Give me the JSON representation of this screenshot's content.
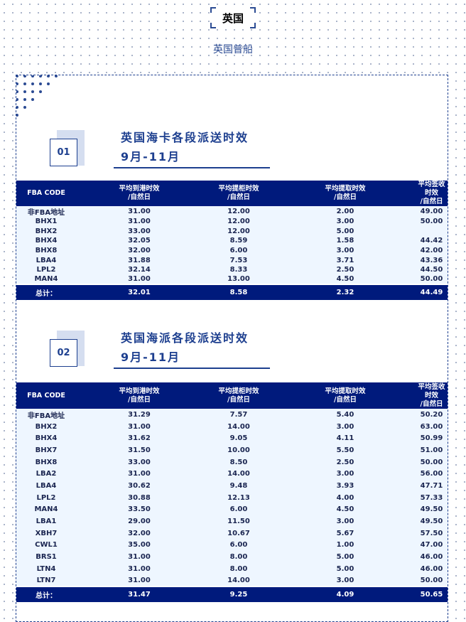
{
  "header": {
    "country": "英国",
    "subtitle": "英国普船"
  },
  "headers": [
    "FBA CODE",
    "平均到港时效\n/自然日",
    "平均提柜时效\n/自然日",
    "平均提取时效\n/自然日",
    "平均签收时效\n/自然日"
  ],
  "sections": [
    {
      "number": "01",
      "title": "英国海卡各段派送时效",
      "period": "9月-11月",
      "rows": [
        [
          "非FBA地址",
          "31.00",
          "12.00",
          "2.00",
          "49.00"
        ],
        [
          "BHX1",
          "31.00",
          "12.00",
          "3.00",
          "50.00"
        ],
        [
          "BHX2",
          "33.00",
          "12.00",
          "5.00",
          ""
        ],
        [
          "BHX4",
          "32.05",
          "8.59",
          "1.58",
          "44.42"
        ],
        [
          "BHX8",
          "32.00",
          "6.00",
          "3.00",
          "42.00"
        ],
        [
          "LBA4",
          "31.88",
          "7.53",
          "3.71",
          "43.36"
        ],
        [
          "LPL2",
          "32.14",
          "8.33",
          "2.50",
          "44.50"
        ],
        [
          "MAN4",
          "31.00",
          "13.00",
          "4.50",
          "50.00"
        ]
      ],
      "total": [
        "总计：",
        "32.01",
        "8.58",
        "2.32",
        "44.49"
      ]
    },
    {
      "number": "02",
      "title": "英国海派各段派送时效",
      "period": "9月-11月",
      "rows": [
        [
          "非FBA地址",
          "31.29",
          "7.57",
          "5.40",
          "50.20"
        ],
        [
          "BHX2",
          "31.00",
          "14.00",
          "3.00",
          "63.00"
        ],
        [
          "BHX4",
          "31.62",
          "9.05",
          "4.11",
          "50.99"
        ],
        [
          "BHX7",
          "31.50",
          "10.00",
          "5.50",
          "51.00"
        ],
        [
          "BHX8",
          "33.00",
          "8.50",
          "2.50",
          "50.00"
        ],
        [
          "LBA2",
          "31.00",
          "14.00",
          "3.00",
          "56.00"
        ],
        [
          "LBA4",
          "30.62",
          "9.48",
          "3.93",
          "47.71"
        ],
        [
          "LPL2",
          "30.88",
          "12.13",
          "4.00",
          "57.33"
        ],
        [
          "MAN4",
          "33.50",
          "6.00",
          "4.50",
          "49.50"
        ],
        [
          "LBA1",
          "29.00",
          "11.50",
          "3.00",
          "49.50"
        ],
        [
          "XBH7",
          "32.00",
          "10.67",
          "5.67",
          "57.50"
        ],
        [
          "CWL1",
          "35.00",
          "6.00",
          "1.00",
          "47.00"
        ],
        [
          "BRS1",
          "31.00",
          "8.00",
          "5.00",
          "46.00"
        ],
        [
          "LTN4",
          "31.00",
          "8.00",
          "5.00",
          "46.00"
        ],
        [
          "LTN7",
          "31.00",
          "14.00",
          "3.00",
          "50.00"
        ]
      ],
      "total": [
        "总计：",
        "31.47",
        "9.25",
        "4.09",
        "50.65"
      ]
    }
  ]
}
